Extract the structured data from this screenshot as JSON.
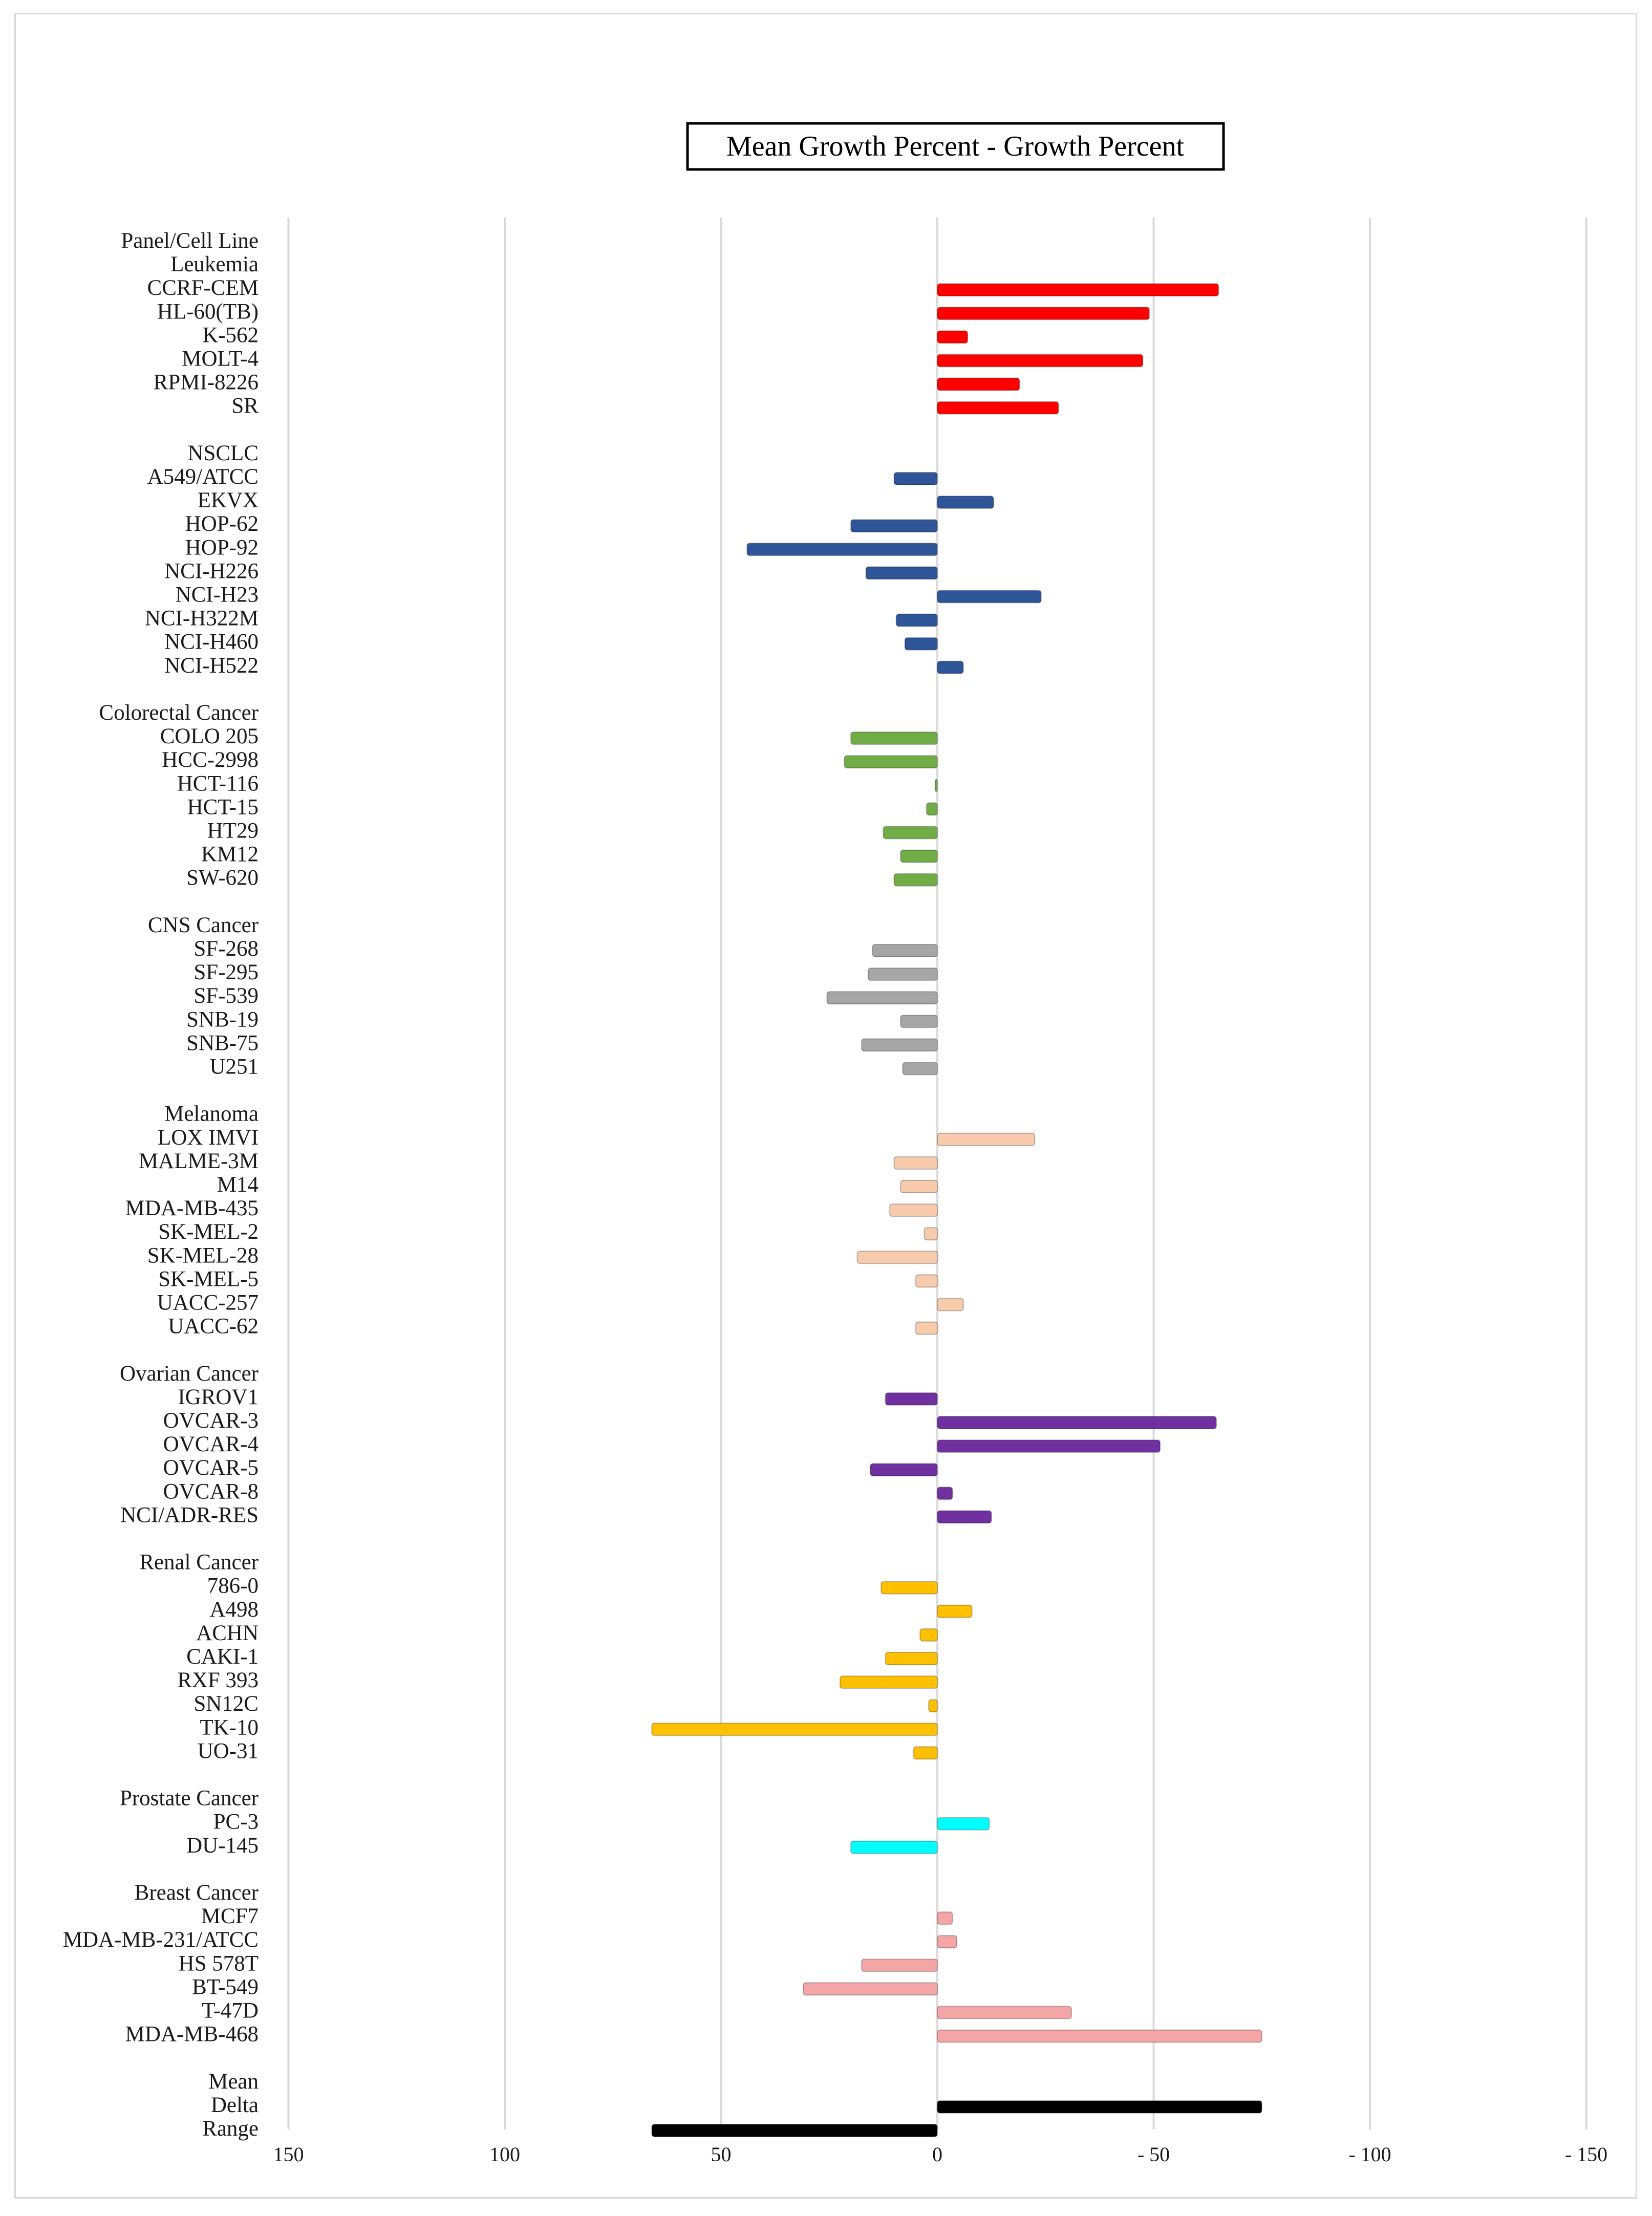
{
  "chart_data": {
    "type": "bar",
    "orientation": "horizontal",
    "title": "Mean Growth Percent - Growth Percent",
    "header_label": "Panel/Cell Line",
    "xlim": [
      150,
      -150
    ],
    "x_ticks": [
      150,
      100,
      50,
      0,
      -50,
      -100,
      -150
    ],
    "x_tick_labels": [
      "150",
      "100",
      "50",
      "0",
      "- 50",
      "- 100",
      "- 150"
    ],
    "grid": true,
    "colors": {
      "Leukemia": "#ff0000",
      "NSCLC": "#2e5597",
      "Colorectal Cancer": "#70ad47",
      "CNS Cancer": "#a6a6a6",
      "Melanoma": "#f8cbad",
      "Ovarian Cancer": "#7030a0",
      "Renal Cancer": "#ffc000",
      "Prostate Cancer": "#00ffff",
      "Breast Cancer": "#f4a6a6",
      "Summary": "#000000"
    },
    "panels": [
      {
        "name": "Leukemia",
        "cells": [
          {
            "label": "CCRF-CEM",
            "value": -65
          },
          {
            "label": "HL-60(TB)",
            "value": -49
          },
          {
            "label": "K-562",
            "value": -7
          },
          {
            "label": "MOLT-4",
            "value": -47.5
          },
          {
            "label": "RPMI-8226",
            "value": -19
          },
          {
            "label": "SR",
            "value": -28
          }
        ]
      },
      {
        "name": "NSCLC",
        "cells": [
          {
            "label": "A549/ATCC",
            "value": 10
          },
          {
            "label": "EKVX",
            "value": -13
          },
          {
            "label": "HOP-62",
            "value": 20
          },
          {
            "label": "HOP-92",
            "value": 44
          },
          {
            "label": "NCI-H226",
            "value": 16.5
          },
          {
            "label": "NCI-H23",
            "value": -24
          },
          {
            "label": "NCI-H322M",
            "value": 9.5
          },
          {
            "label": "NCI-H460",
            "value": 7.5
          },
          {
            "label": "NCI-H522",
            "value": -6
          }
        ]
      },
      {
        "name": "Colorectal Cancer",
        "cells": [
          {
            "label": "COLO 205",
            "value": 20
          },
          {
            "label": "HCC-2998",
            "value": 21.5
          },
          {
            "label": "HCT-116",
            "value": 0.5
          },
          {
            "label": "HCT-15",
            "value": 2.5
          },
          {
            "label": "HT29",
            "value": 12.5
          },
          {
            "label": "KM12",
            "value": 8.5
          },
          {
            "label": "SW-620",
            "value": 10
          }
        ]
      },
      {
        "name": "CNS Cancer",
        "cells": [
          {
            "label": "SF-268",
            "value": 15
          },
          {
            "label": "SF-295",
            "value": 16
          },
          {
            "label": "SF-539",
            "value": 25.5
          },
          {
            "label": "SNB-19",
            "value": 8.5
          },
          {
            "label": "SNB-75",
            "value": 17.5
          },
          {
            "label": "U251",
            "value": 8
          }
        ]
      },
      {
        "name": "Melanoma",
        "cells": [
          {
            "label": "LOX IMVI",
            "value": -22.5
          },
          {
            "label": "MALME-3M",
            "value": 10
          },
          {
            "label": "M14",
            "value": 8.5
          },
          {
            "label": "MDA-MB-435",
            "value": 11
          },
          {
            "label": "SK-MEL-2",
            "value": 3
          },
          {
            "label": "SK-MEL-28",
            "value": 18.5
          },
          {
            "label": "SK-MEL-5",
            "value": 5
          },
          {
            "label": "UACC-257",
            "value": -6
          },
          {
            "label": "UACC-62",
            "value": 5
          }
        ]
      },
      {
        "name": "Ovarian Cancer",
        "cells": [
          {
            "label": "IGROV1",
            "value": 12
          },
          {
            "label": "OVCAR-3",
            "value": -64.5
          },
          {
            "label": "OVCAR-4",
            "value": -51.5
          },
          {
            "label": "OVCAR-5",
            "value": 15.5
          },
          {
            "label": "OVCAR-8",
            "value": -3.5
          },
          {
            "label": "NCI/ADR-RES",
            "value": -12.5
          }
        ]
      },
      {
        "name": "Renal Cancer",
        "cells": [
          {
            "label": "786-0",
            "value": 13
          },
          {
            "label": "A498",
            "value": -8
          },
          {
            "label": "ACHN",
            "value": 4
          },
          {
            "label": "CAKI-1",
            "value": 12
          },
          {
            "label": "RXF 393",
            "value": 22.5
          },
          {
            "label": "SN12C",
            "value": 2
          },
          {
            "label": "TK-10",
            "value": 66
          },
          {
            "label": "UO-31",
            "value": 5.5
          }
        ]
      },
      {
        "name": "Prostate Cancer",
        "cells": [
          {
            "label": "PC-3",
            "value": -12
          },
          {
            "label": "DU-145",
            "value": 20
          }
        ]
      },
      {
        "name": "Breast Cancer",
        "cells": [
          {
            "label": "MCF7",
            "value": -3.5
          },
          {
            "label": "MDA-MB-231/ATCC",
            "value": -4.5
          },
          {
            "label": "HS 578T",
            "value": 17.5
          },
          {
            "label": "BT-549",
            "value": 31
          },
          {
            "label": "T-47D",
            "value": -31
          },
          {
            "label": "MDA-MB-468",
            "value": -75
          }
        ]
      }
    ],
    "summary": [
      {
        "label": "Mean",
        "value": null
      },
      {
        "label": "Delta",
        "value": -75
      },
      {
        "label": "Range",
        "value": 66
      }
    ]
  }
}
